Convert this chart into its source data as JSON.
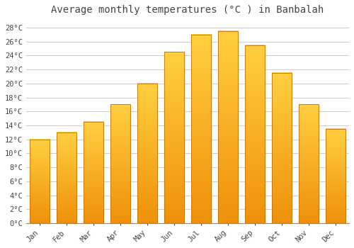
{
  "title": "Average monthly temperatures (°C ) in Banbalah",
  "months": [
    "Jan",
    "Feb",
    "Mar",
    "Apr",
    "May",
    "Jun",
    "Jul",
    "Aug",
    "Sep",
    "Oct",
    "Nov",
    "Dec"
  ],
  "values": [
    12,
    13,
    14.5,
    17,
    20,
    24.5,
    27,
    27.5,
    25.5,
    21.5,
    17,
    13.5
  ],
  "bar_color_top": "#FFD040",
  "bar_color_bottom": "#F0900A",
  "bar_edge_color": "#C87000",
  "background_color": "#FFFFFF",
  "plot_bg_color": "#FFFFFF",
  "grid_color": "#CCCCCC",
  "text_color": "#444444",
  "ylim": [
    0,
    29
  ],
  "yticks": [
    0,
    2,
    4,
    6,
    8,
    10,
    12,
    14,
    16,
    18,
    20,
    22,
    24,
    26,
    28
  ],
  "ytick_labels": [
    "0°C",
    "2°C",
    "4°C",
    "6°C",
    "8°C",
    "10°C",
    "12°C",
    "14°C",
    "16°C",
    "18°C",
    "20°C",
    "22°C",
    "24°C",
    "26°C",
    "28°C"
  ],
  "title_fontsize": 10,
  "tick_fontsize": 7.5,
  "font_family": "monospace",
  "bar_width": 0.75
}
